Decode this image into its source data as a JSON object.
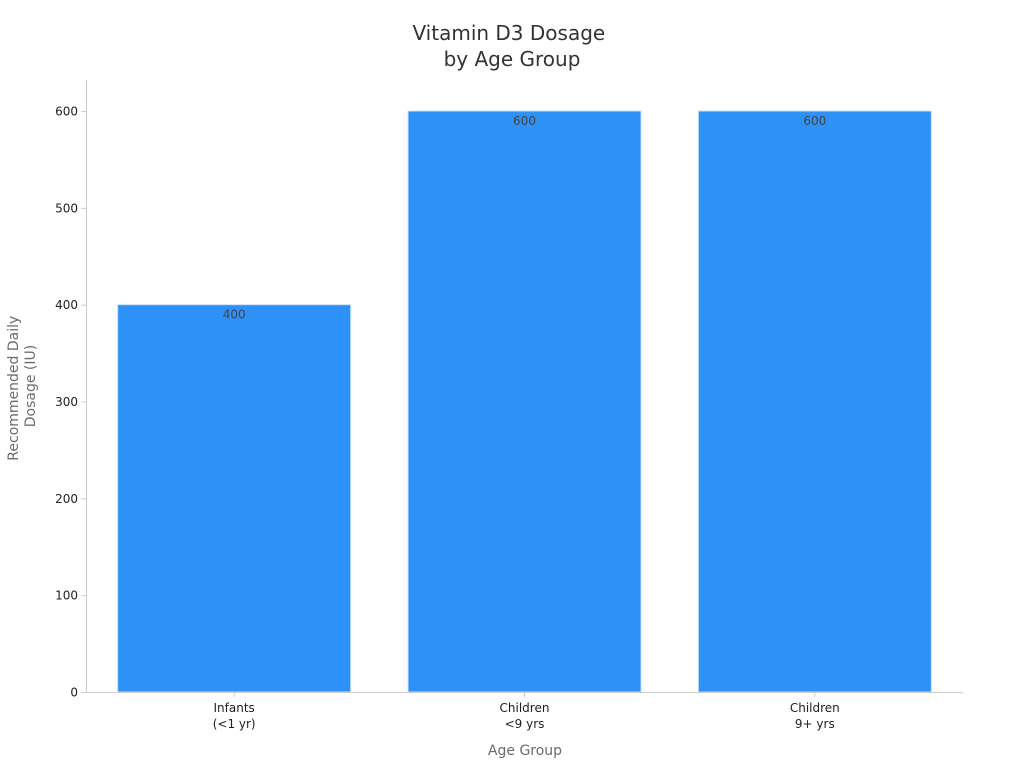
{
  "chart_data": {
    "type": "bar",
    "title": [
      "Vitamin D3 Dosage",
      "by Age Group"
    ],
    "xlabel": "Age Group",
    "ylabel": [
      "Recommended Daily",
      "Dosage (IU)"
    ],
    "categories": [
      [
        "Infants",
        "(<1 yr)"
      ],
      [
        "Children",
        "<9 yrs"
      ],
      [
        "Children",
        "9+ yrs"
      ]
    ],
    "values": [
      400,
      600,
      600
    ],
    "data_labels": [
      "400",
      "600",
      "600"
    ],
    "ylim": [
      0,
      630
    ],
    "yticks": [
      0,
      100,
      200,
      300,
      400,
      500,
      600
    ],
    "grid": false,
    "legend": "none",
    "colors": {
      "bar": "#2e91f7",
      "bar_edge": "#c9e0f8"
    }
  }
}
